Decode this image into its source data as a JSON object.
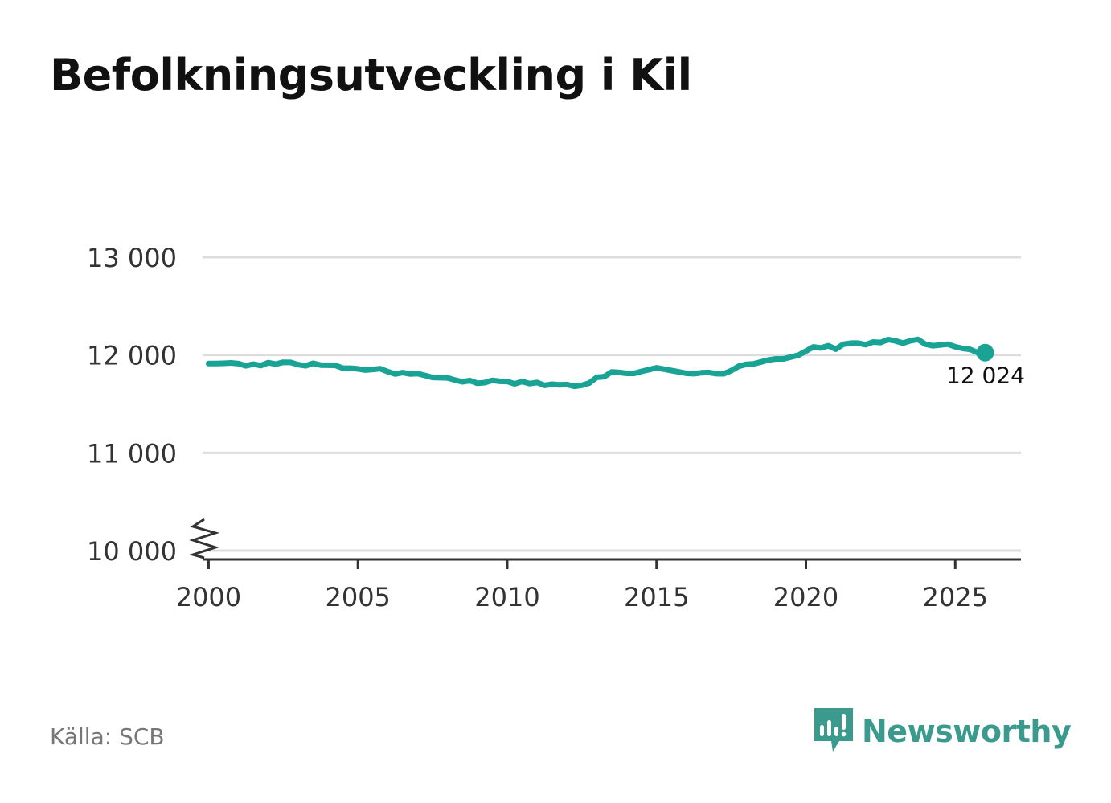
{
  "title": "Befolkningsutveckling i Kil",
  "source": "Källa: SCB",
  "brand": {
    "name": "Newsworthy",
    "icon": "newsworthy-logo-icon",
    "color": "#3a9a8e"
  },
  "colors": {
    "line": "#18a394",
    "grid": "#dddddd",
    "axis": "#333333"
  },
  "chart_data": {
    "type": "line",
    "title": "Befolkningsutveckling i Kil",
    "xlabel": "",
    "ylabel": "",
    "xlim": [
      1999.8,
      2027.2
    ],
    "ylim": [
      10000,
      13000
    ],
    "y_axis_break": true,
    "grid": true,
    "x_ticks": [
      2000,
      2005,
      2010,
      2015,
      2020,
      2025
    ],
    "x_tick_labels": [
      "2000",
      "2005",
      "2010",
      "2015",
      "2020",
      "2025"
    ],
    "y_ticks": [
      10000,
      11000,
      12000,
      13000
    ],
    "y_tick_labels": [
      "10 000",
      "11 000",
      "12 000",
      "13 000"
    ],
    "end_label": "12 024",
    "series": [
      {
        "x": [
          2000.0,
          2000.25,
          2000.5,
          2000.75,
          2001.0,
          2001.25,
          2001.5,
          2001.75,
          2002.0,
          2002.25,
          2002.5,
          2002.75,
          2003.0,
          2003.25,
          2003.5,
          2003.75,
          2004.0,
          2004.25,
          2004.5,
          2004.75,
          2005.0,
          2005.25,
          2005.5,
          2005.75,
          2006.0,
          2006.25,
          2006.5,
          2006.75,
          2007.0,
          2007.25,
          2007.5,
          2007.75,
          2008.0,
          2008.25,
          2008.5,
          2008.75,
          2009.0,
          2009.25,
          2009.5,
          2009.75,
          2010.0,
          2010.25,
          2010.5,
          2010.75,
          2011.0,
          2011.25,
          2011.5,
          2011.75,
          2012.0,
          2012.25,
          2012.5,
          2012.75,
          2013.0,
          2013.25,
          2013.5,
          2013.75,
          2014.0,
          2014.25,
          2014.5,
          2014.75,
          2015.0,
          2015.25,
          2015.5,
          2015.75,
          2016.0,
          2016.25,
          2016.5,
          2016.75,
          2017.0,
          2017.25,
          2017.5,
          2017.75,
          2018.0,
          2018.25,
          2018.5,
          2018.75,
          2019.0,
          2019.25,
          2019.5,
          2019.75,
          2020.0,
          2020.25,
          2020.5,
          2020.75,
          2021.0,
          2021.25,
          2021.5,
          2021.75,
          2022.0,
          2022.25,
          2022.5,
          2022.75,
          2023.0,
          2023.25,
          2023.5,
          2023.75,
          2024.0,
          2024.25,
          2024.5,
          2024.75,
          2025.0,
          2025.25,
          2025.5,
          2025.75,
          2026.0
        ],
        "values": [
          11913,
          11913,
          11915,
          11919,
          11912,
          11890,
          11906,
          11892,
          11922,
          11907,
          11926,
          11924,
          11901,
          11890,
          11915,
          11897,
          11895,
          11894,
          11865,
          11865,
          11858,
          11846,
          11853,
          11860,
          11830,
          11806,
          11820,
          11806,
          11810,
          11791,
          11770,
          11768,
          11766,
          11744,
          11726,
          11739,
          11711,
          11718,
          11741,
          11731,
          11729,
          11705,
          11729,
          11708,
          11719,
          11690,
          11701,
          11696,
          11698,
          11680,
          11691,
          11714,
          11772,
          11779,
          11827,
          11821,
          11812,
          11812,
          11833,
          11851,
          11869,
          11855,
          11841,
          11827,
          11812,
          11809,
          11818,
          11821,
          11809,
          11808,
          11840,
          11885,
          11904,
          11909,
          11929,
          11950,
          11960,
          11960,
          11979,
          11998,
          12040,
          12083,
          12072,
          12095,
          12060,
          12110,
          12121,
          12121,
          12106,
          12133,
          12128,
          12158,
          12144,
          12121,
          12146,
          12159,
          12111,
          12094,
          12103,
          12111,
          12084,
          12067,
          12057,
          12024,
          12024
        ]
      }
    ]
  }
}
